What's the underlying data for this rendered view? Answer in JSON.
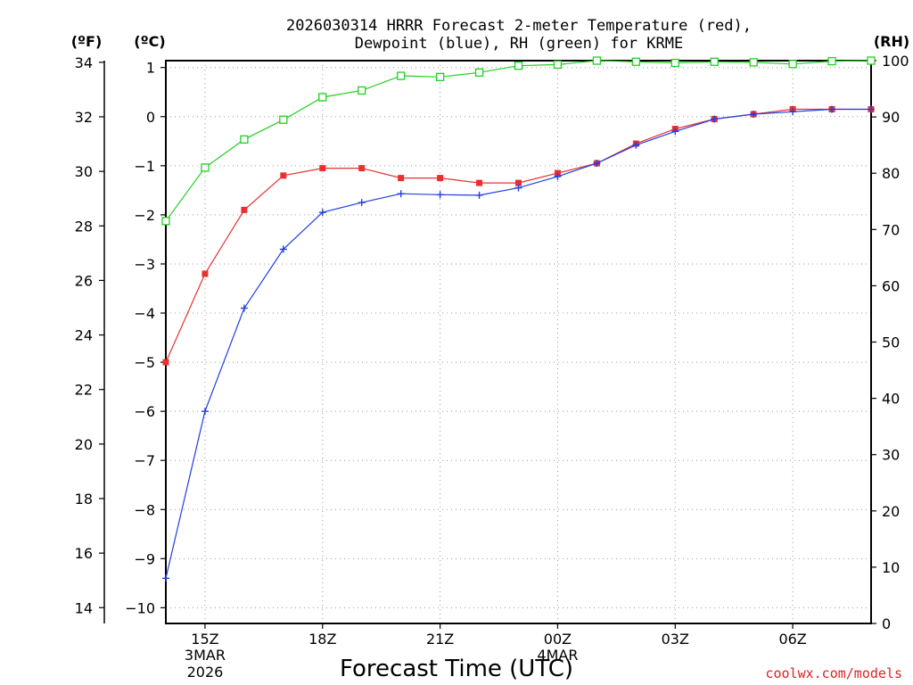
{
  "chart_data": {
    "type": "line",
    "title_line1": "2026030314 HRRR Forecast 2-meter Temperature (red),",
    "title_line2": "Dewpoint (blue), RH (green) for KRME",
    "xlabel": "Forecast Time (UTC)",
    "left_outer_axis": {
      "unit": "(ºF)",
      "range": [
        13.42,
        34.06
      ],
      "ticks": [
        14,
        16,
        18,
        20,
        22,
        24,
        26,
        28,
        30,
        32,
        34
      ]
    },
    "left_inner_axis": {
      "unit": "(ºC)",
      "range": [
        -10.32,
        1.14
      ],
      "ticks": [
        -10,
        -9,
        -8,
        -7,
        -6,
        -5,
        -4,
        -3,
        -2,
        -1,
        0,
        1
      ]
    },
    "right_axis": {
      "unit": "(RH)",
      "range": [
        0,
        100
      ],
      "ticks": [
        0,
        10,
        20,
        30,
        40,
        50,
        60,
        70,
        80,
        90,
        100
      ]
    },
    "x_range_hours": [
      14,
      32
    ],
    "x_ticks": [
      {
        "hour": 15,
        "label": "15Z",
        "sub1": "3MAR",
        "sub2": "2026"
      },
      {
        "hour": 18,
        "label": "18Z",
        "sub1": "",
        "sub2": ""
      },
      {
        "hour": 21,
        "label": "21Z",
        "sub1": "",
        "sub2": ""
      },
      {
        "hour": 24,
        "label": "00Z",
        "sub1": "4MAR",
        "sub2": ""
      },
      {
        "hour": 27,
        "label": "03Z",
        "sub1": "",
        "sub2": ""
      },
      {
        "hour": 30,
        "label": "06Z",
        "sub1": "",
        "sub2": ""
      }
    ],
    "grid": true,
    "series": [
      {
        "name": "Temperature",
        "axis": "celsius",
        "color": "#e83030",
        "marker": "filled-square",
        "x": [
          14,
          15,
          16,
          17,
          18,
          19,
          20,
          21,
          22,
          23,
          24,
          25,
          26,
          27,
          28,
          29,
          30,
          31,
          32
        ],
        "values": [
          -5.0,
          -3.2,
          -1.9,
          -1.2,
          -1.05,
          -1.05,
          -1.25,
          -1.25,
          -1.35,
          -1.35,
          -1.15,
          -0.95,
          -0.55,
          -0.25,
          -0.05,
          0.05,
          0.15,
          0.15,
          0.15
        ]
      },
      {
        "name": "Dewpoint",
        "axis": "celsius",
        "color": "#2040e0",
        "marker": "plus",
        "x": [
          14,
          15,
          16,
          17,
          18,
          19,
          20,
          21,
          22,
          23,
          24,
          25,
          26,
          27,
          28,
          29,
          30,
          31,
          32
        ],
        "values": [
          -9.4,
          -6.0,
          -3.9,
          -2.7,
          -1.95,
          -1.75,
          -1.57,
          -1.59,
          -1.6,
          -1.45,
          -1.22,
          -0.95,
          -0.58,
          -0.3,
          -0.05,
          0.05,
          0.1,
          0.15,
          0.15
        ]
      },
      {
        "name": "RH",
        "axis": "rh",
        "color": "#20d020",
        "marker": "open-square",
        "x": [
          14,
          15,
          16,
          17,
          18,
          19,
          20,
          21,
          22,
          23,
          24,
          25,
          26,
          27,
          28,
          29,
          30,
          31,
          32
        ],
        "values": [
          71.5,
          81,
          86,
          89.5,
          93.5,
          94.7,
          97.3,
          97.1,
          97.9,
          99.1,
          99.3,
          100,
          99.8,
          99.6,
          99.8,
          99.7,
          99.4,
          99.9,
          100
        ]
      }
    ]
  },
  "credit": "coolwx.com/models",
  "colors": {
    "credit": "#e02020",
    "axis": "#000000"
  }
}
